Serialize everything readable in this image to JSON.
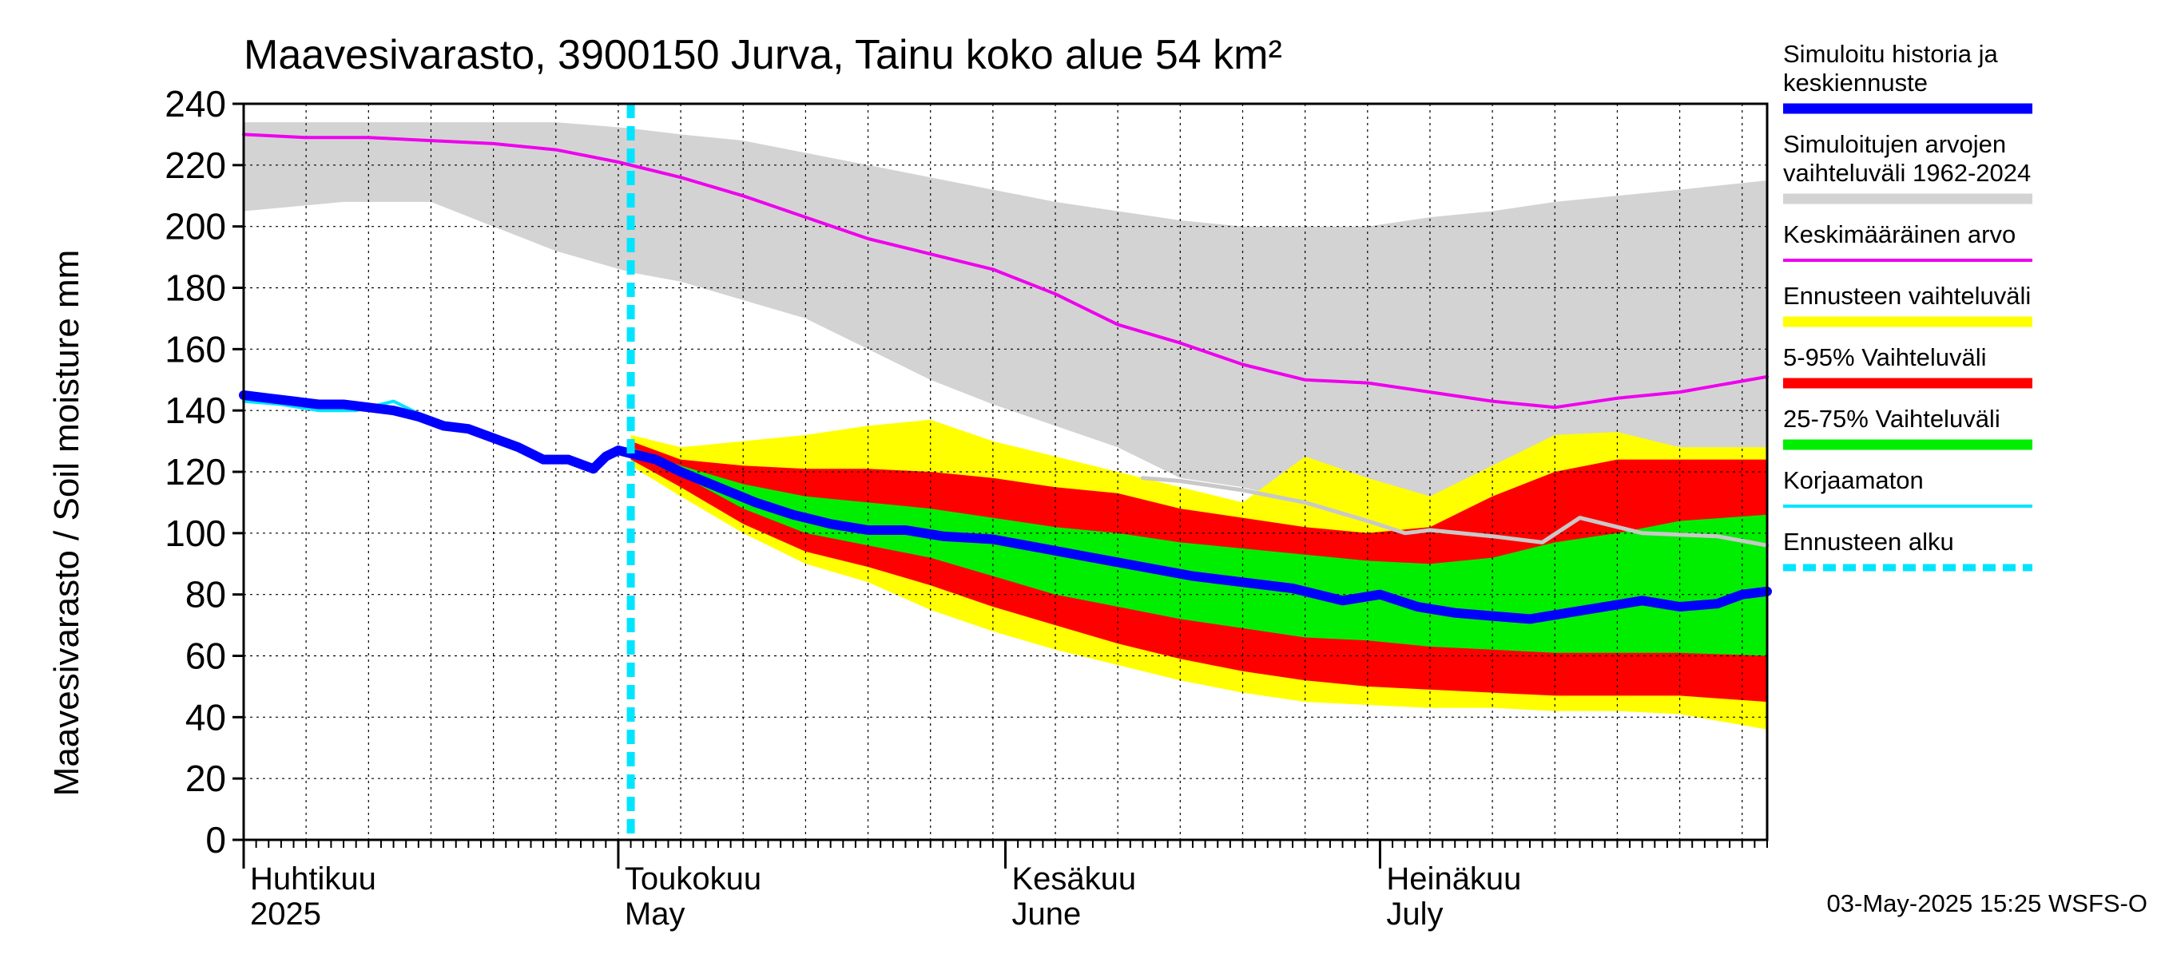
{
  "chart_data": {
    "type": "area",
    "title": "Maavesivarasto, 3900150 Jurva, Tainu koko alue 54 km²",
    "ylabel": "Maavesivarasto / Soil moisture   mm",
    "ylim": [
      0,
      240
    ],
    "yticks": [
      0,
      20,
      40,
      60,
      80,
      100,
      120,
      140,
      160,
      180,
      200,
      220,
      240
    ],
    "grid": true,
    "x_days": [
      0,
      122
    ],
    "forecast_start_day": 31,
    "month_labels": [
      {
        "day": 0,
        "fi": "Huhtikuu",
        "en": "2025"
      },
      {
        "day": 30,
        "fi": "Toukokuu",
        "en": "May"
      },
      {
        "day": 61,
        "fi": "Kesäkuu",
        "en": "June"
      },
      {
        "day": 91,
        "fi": "Heinäkuu",
        "en": "July"
      }
    ],
    "series": [
      {
        "name": "Simuloitujen arvojen vaihteluväli 1962-2024",
        "kind": "band",
        "color": "#d3d3d3",
        "x": [
          0,
          8,
          15,
          20,
          25,
          31,
          35,
          40,
          45,
          50,
          55,
          60,
          65,
          70,
          75,
          80,
          85,
          90,
          95,
          100,
          105,
          110,
          115,
          122
        ],
        "low": [
          205,
          208,
          208,
          200,
          192,
          185,
          182,
          176,
          170,
          160,
          150,
          142,
          135,
          128,
          118,
          115,
          110,
          107,
          104,
          103,
          106,
          108,
          112,
          118
        ],
        "high": [
          234,
          234,
          234,
          234,
          234,
          232,
          230,
          228,
          224,
          220,
          216,
          212,
          208,
          205,
          202,
          200,
          200,
          200,
          203,
          205,
          208,
          210,
          212,
          215
        ]
      },
      {
        "name": "Ennusteen vaihteluväli",
        "kind": "band",
        "color": "#ffff00",
        "x": [
          31,
          35,
          40,
          45,
          50,
          55,
          60,
          65,
          70,
          75,
          80,
          85,
          90,
          95,
          100,
          105,
          110,
          115,
          122
        ],
        "low": [
          122,
          112,
          100,
          90,
          84,
          75,
          68,
          62,
          57,
          52,
          48,
          45,
          44,
          43,
          43,
          42,
          42,
          41,
          36
        ],
        "high": [
          132,
          128,
          130,
          132,
          135,
          137,
          130,
          125,
          120,
          115,
          110,
          125,
          118,
          112,
          122,
          132,
          133,
          128,
          128
        ]
      },
      {
        "name": "5-95% Vaihteluväli",
        "kind": "band",
        "color": "#ff0000",
        "x": [
          31,
          35,
          40,
          45,
          50,
          55,
          60,
          65,
          70,
          75,
          80,
          85,
          90,
          95,
          100,
          105,
          110,
          115,
          122
        ],
        "low": [
          124,
          115,
          103,
          94,
          89,
          83,
          76,
          70,
          64,
          59,
          55,
          52,
          50,
          49,
          48,
          47,
          47,
          47,
          45
        ],
        "high": [
          130,
          124,
          122,
          121,
          121,
          120,
          118,
          115,
          113,
          108,
          105,
          102,
          100,
          102,
          112,
          120,
          124,
          124,
          124
        ]
      },
      {
        "name": "25-75% Vaihteluväli",
        "kind": "band",
        "color": "#00ee00",
        "x": [
          31,
          35,
          40,
          45,
          50,
          55,
          60,
          65,
          70,
          75,
          80,
          85,
          90,
          95,
          100,
          105,
          110,
          115,
          122
        ],
        "low": [
          126,
          119,
          108,
          100,
          96,
          92,
          86,
          80,
          76,
          72,
          69,
          66,
          65,
          63,
          62,
          61,
          61,
          61,
          60
        ],
        "high": [
          128,
          122,
          116,
          112,
          110,
          108,
          105,
          102,
          100,
          97,
          95,
          93,
          91,
          90,
          92,
          97,
          100,
          104,
          106
        ]
      },
      {
        "name": "Keskimääräinen arvo",
        "kind": "line",
        "color": "#ee00ee",
        "x": [
          0,
          5,
          10,
          15,
          20,
          25,
          30,
          35,
          40,
          45,
          50,
          55,
          60,
          65,
          70,
          75,
          80,
          85,
          90,
          95,
          100,
          105,
          110,
          115,
          122
        ],
        "values": [
          230,
          229,
          229,
          228,
          227,
          225,
          221,
          216,
          210,
          203,
          196,
          191,
          186,
          178,
          168,
          162,
          155,
          150,
          149,
          146,
          143,
          141,
          144,
          146,
          151
        ]
      },
      {
        "name": "Simuloitu historia (grey continuation)",
        "kind": "line",
        "color": "#c8c8c8",
        "x": [
          72,
          75,
          80,
          85,
          90,
          93,
          95,
          100,
          104,
          107,
          112,
          118,
          122
        ],
        "values": [
          118,
          117,
          114,
          110,
          104,
          100,
          101,
          99,
          97,
          105,
          100,
          99,
          96
        ]
      },
      {
        "name": "Korjaamaton",
        "kind": "line",
        "color": "#00e5ff",
        "x": [
          0,
          3,
          6,
          9,
          12,
          15,
          18,
          21,
          24,
          26,
          28,
          30,
          31
        ],
        "values": [
          143,
          142,
          140,
          140,
          143,
          137,
          133,
          129,
          125,
          125,
          122,
          126,
          127
        ]
      },
      {
        "name": "Simuloitu historia ja keskiennuste",
        "kind": "line",
        "color": "#0000ff",
        "x": [
          0,
          2,
          4,
          6,
          8,
          10,
          12,
          14,
          16,
          18,
          20,
          22,
          24,
          26,
          28,
          29,
          30,
          31,
          33,
          35,
          38,
          41,
          44,
          47,
          50,
          53,
          56,
          60,
          64,
          68,
          72,
          76,
          80,
          84,
          88,
          91,
          94,
          97,
          100,
          103,
          106,
          109,
          112,
          115,
          118,
          120,
          122
        ],
        "values": [
          145,
          144,
          143,
          142,
          142,
          141,
          140,
          138,
          135,
          134,
          131,
          128,
          124,
          124,
          121,
          125,
          127,
          126,
          124,
          120,
          115,
          110,
          106,
          103,
          101,
          101,
          99,
          98,
          95,
          92,
          89,
          86,
          84,
          82,
          78,
          80,
          76,
          74,
          73,
          72,
          74,
          76,
          78,
          76,
          77,
          80,
          81
        ]
      }
    ]
  },
  "legend": [
    {
      "label": "Simuloitu historia ja keskiennuste",
      "color": "#0000ff",
      "style": "thick"
    },
    {
      "label": "Simuloitujen arvojen vaihteluväli 1962-2024",
      "color": "#d3d3d3",
      "style": "thick"
    },
    {
      "label": "Keskimääräinen arvo",
      "color": "#ee00ee",
      "style": "thin"
    },
    {
      "label": "Ennusteen vaihteluväli",
      "color": "#ffff00",
      "style": "thick"
    },
    {
      "label": "5-95% Vaihteluväli",
      "color": "#ff0000",
      "style": "thick"
    },
    {
      "label": "25-75% Vaihteluväli",
      "color": "#00ee00",
      "style": "thick"
    },
    {
      "label": "Korjaamaton",
      "color": "#00e5ff",
      "style": "thin"
    },
    {
      "label": "Ennusteen alku",
      "color": "#00e5ff",
      "style": "dashed"
    }
  ],
  "timestamp": "03-May-2025 15:25 WSFS-O"
}
